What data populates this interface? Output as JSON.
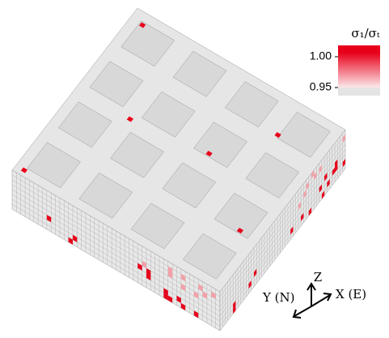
{
  "legend": {
    "title": "σ₁/σₜ",
    "ticks": [
      {
        "value": 1,
        "label": "1.00"
      },
      {
        "value": 0.95,
        "label": "0.95"
      }
    ]
  },
  "axes": {
    "z": "Z",
    "y": "Y (N)",
    "x": "X (E)"
  }
}
